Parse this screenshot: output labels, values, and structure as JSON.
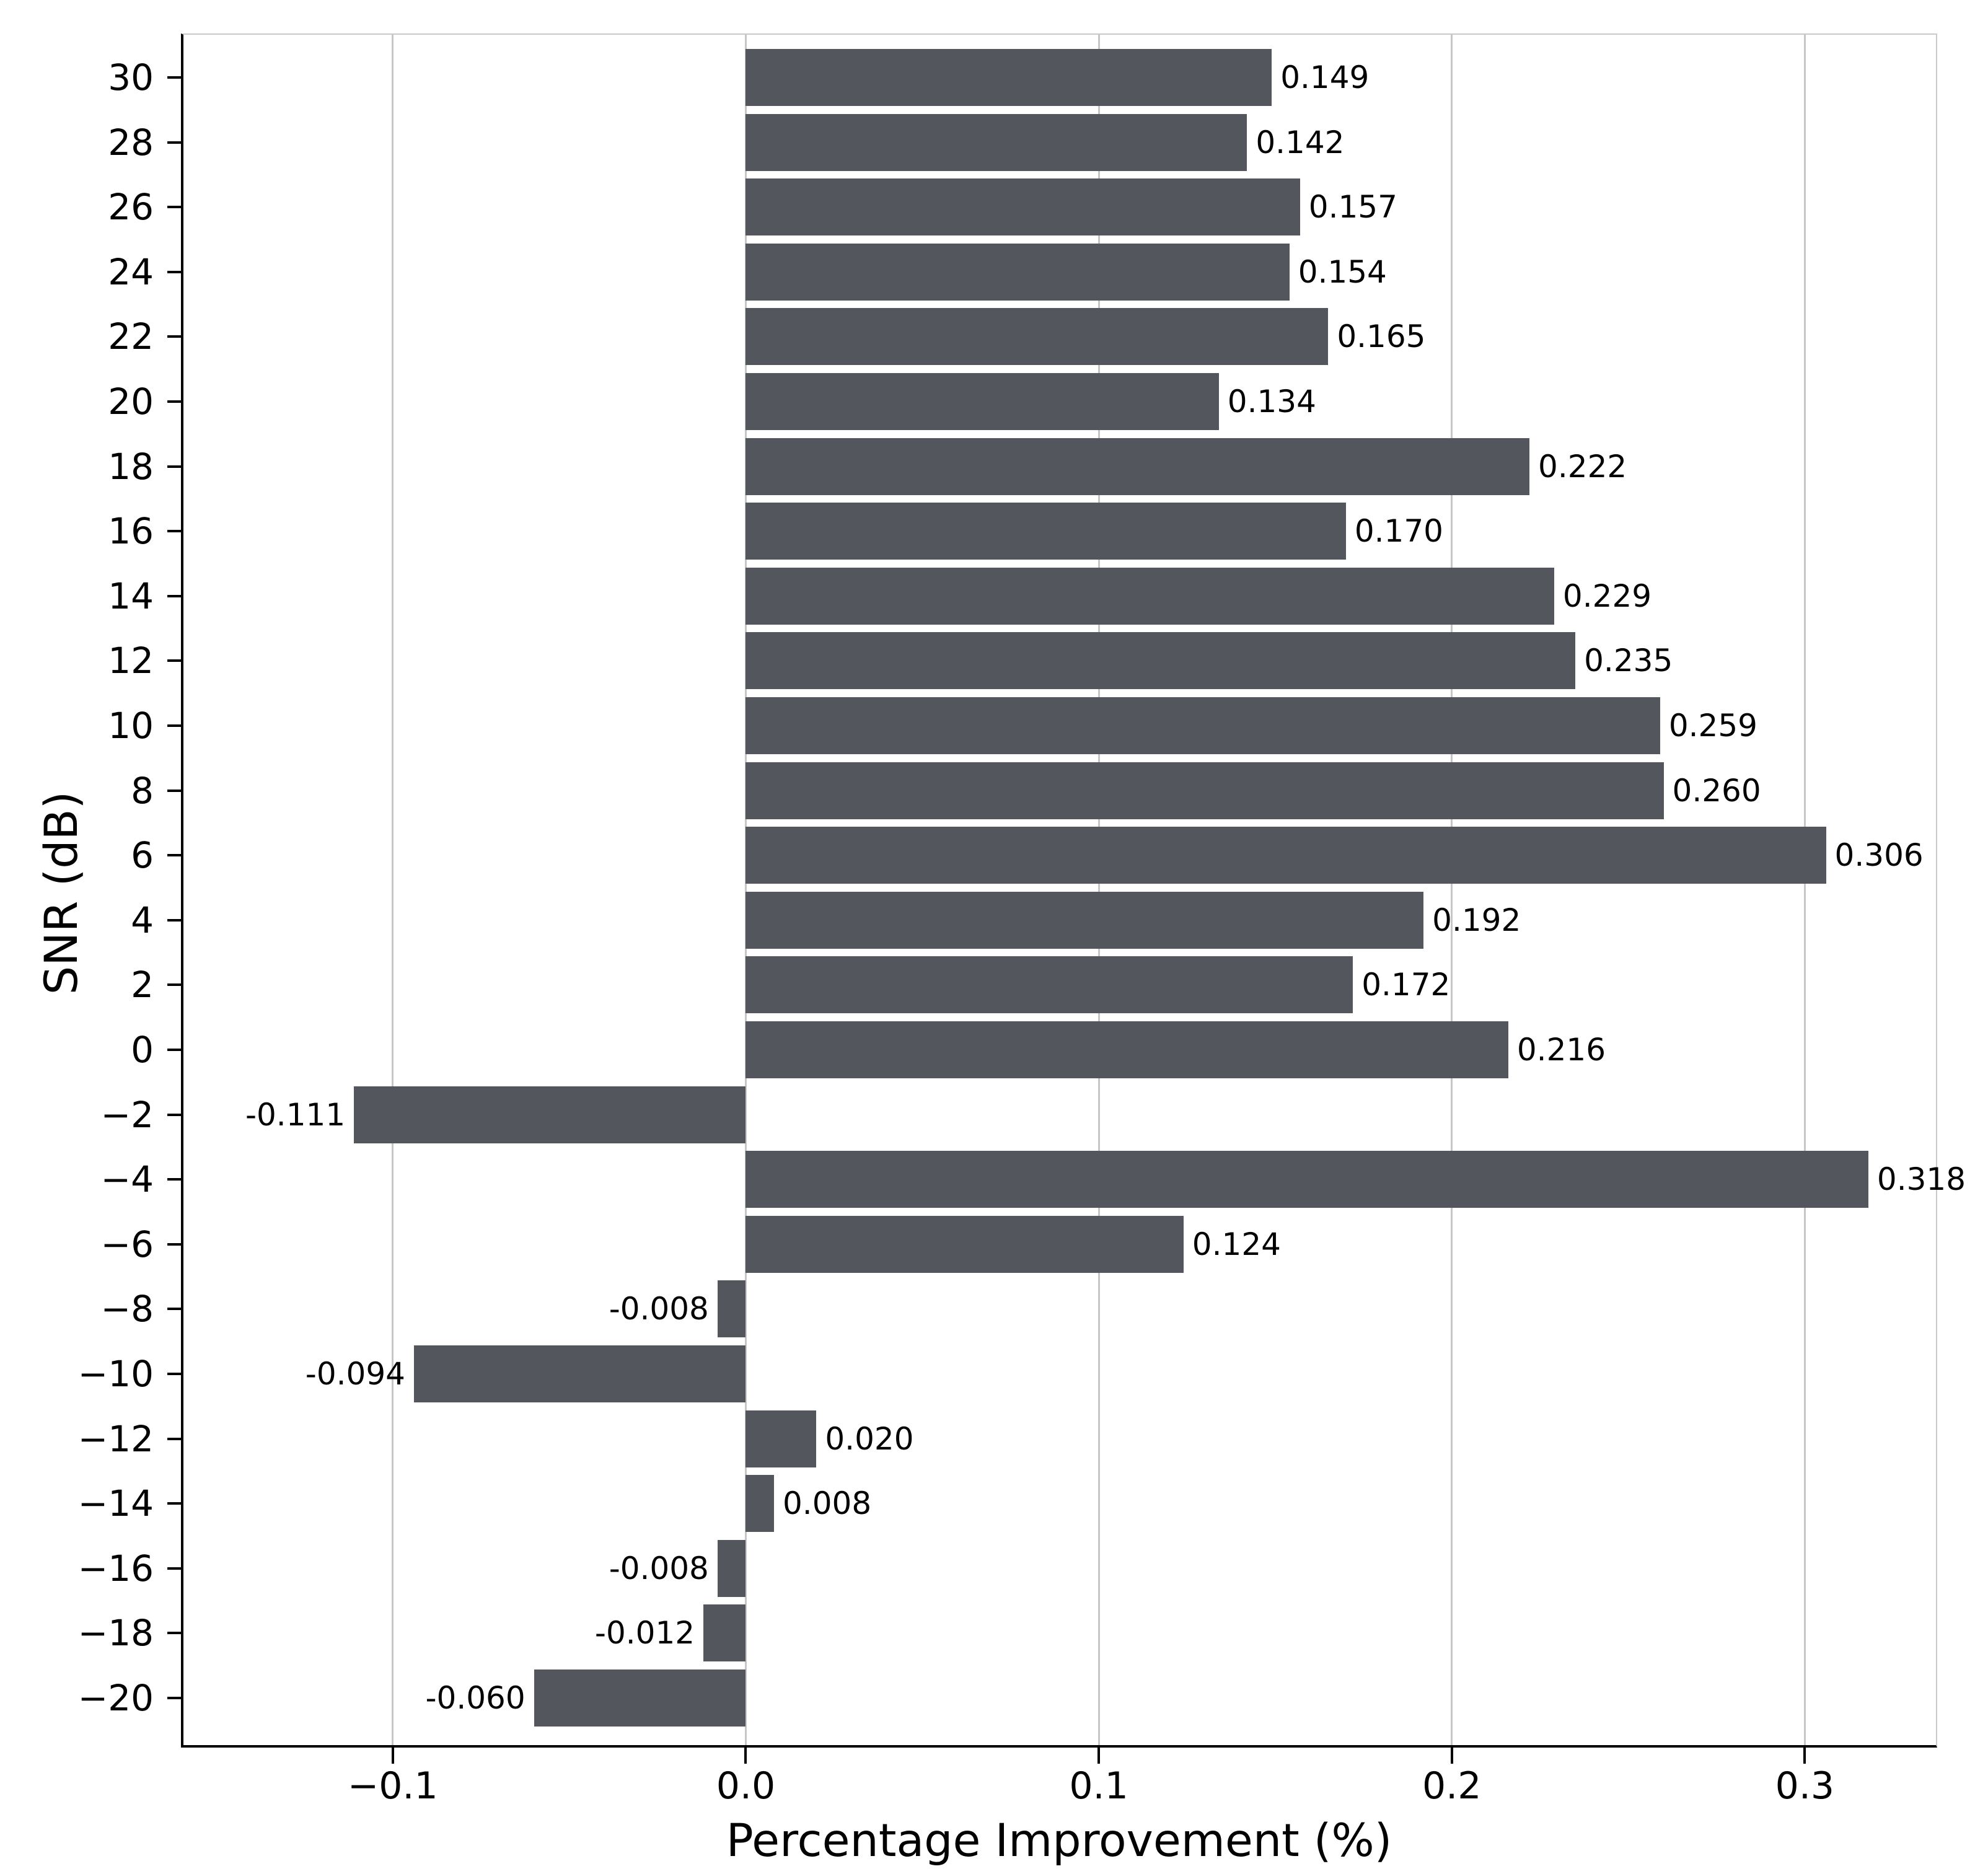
{
  "chart_data": {
    "type": "bar",
    "orientation": "horizontal",
    "title": "",
    "xlabel": "Percentage Improvement (%)",
    "ylabel": "SNR (dB)",
    "categories": [
      30,
      28,
      26,
      24,
      22,
      20,
      18,
      16,
      14,
      12,
      10,
      8,
      6,
      4,
      2,
      0,
      -2,
      -4,
      -6,
      -8,
      -10,
      -12,
      -14,
      -16,
      -18,
      -20
    ],
    "ytick_labels": [
      "30",
      "28",
      "26",
      "24",
      "22",
      "20",
      "18",
      "16",
      "14",
      "12",
      "10",
      "8",
      "6",
      "4",
      "2",
      "0",
      "−2",
      "−4",
      "−6",
      "−8",
      "−10",
      "−12",
      "−14",
      "−16",
      "−18",
      "−20"
    ],
    "values": [
      0.149,
      0.142,
      0.157,
      0.154,
      0.165,
      0.134,
      0.222,
      0.17,
      0.229,
      0.235,
      0.259,
      0.26,
      0.306,
      0.192,
      0.172,
      0.216,
      -0.111,
      0.318,
      0.124,
      -0.008,
      -0.094,
      0.02,
      0.008,
      -0.008,
      -0.012,
      -0.06
    ],
    "bar_labels": [
      "0.149",
      "0.142",
      "0.157",
      "0.154",
      "0.165",
      "0.134",
      "0.222",
      "0.170",
      "0.229",
      "0.235",
      "0.259",
      "0.260",
      "0.306",
      "0.192",
      "0.172",
      "0.216",
      "-0.111",
      "0.318",
      "0.124",
      "-0.008",
      "-0.094",
      "0.020",
      "0.008",
      "-0.008",
      "-0.012",
      "-0.060"
    ],
    "xticks": {
      "values": [
        -0.1,
        0.0,
        0.1,
        0.2,
        0.3
      ],
      "labels": [
        "−0.1",
        "0.0",
        "0.1",
        "0.2",
        "0.3"
      ]
    },
    "xlim": [
      -0.16,
      0.3375
    ],
    "grid": {
      "axis": "x",
      "on": true
    },
    "legend": {
      "shown": false
    },
    "colors": {
      "bar": "#53565d",
      "grid": "#c6c6c6",
      "spine_dark": "#000000",
      "spine_light": "#c9c9c9",
      "text": "#000000",
      "background": "#ffffff"
    }
  }
}
